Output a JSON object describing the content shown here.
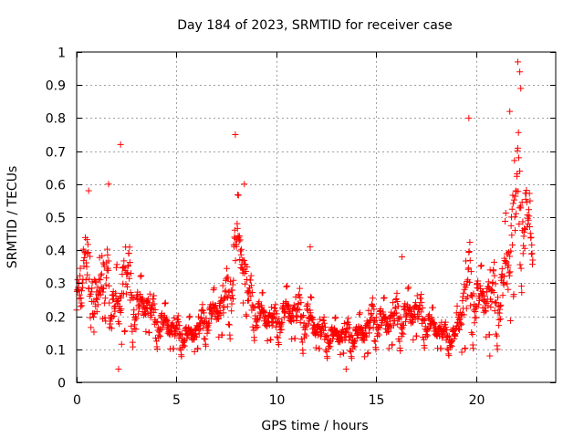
{
  "chart_data": {
    "type": "scatter",
    "title": "Day 184 of 2023, SRMTID for receiver case",
    "xlabel": "GPS time / hours",
    "ylabel": "SRMTID / TECUs",
    "xlim": [
      0,
      24
    ],
    "ylim": [
      0,
      1
    ],
    "x_ticks": [
      0,
      5,
      10,
      15,
      20
    ],
    "x_tick_labels": [
      "0",
      "5",
      "10",
      "15",
      "20"
    ],
    "y_ticks": [
      0,
      0.1,
      0.2,
      0.3,
      0.4,
      0.5,
      0.6,
      0.7,
      0.8,
      0.9,
      1
    ],
    "y_tick_labels": [
      "0",
      "0.1",
      "0.2",
      "0.3",
      "0.4",
      "0.5",
      "0.6",
      "0.7",
      "0.8",
      "0.9",
      "1"
    ],
    "grid": true,
    "marker": "+",
    "series_color": "#ff0000",
    "sampling": {
      "x_start": 0,
      "x_end": 22.85,
      "n_points": 1371
    },
    "envelope": {
      "x": [
        0,
        0.3,
        0.6,
        1.0,
        1.4,
        1.8,
        2.1,
        2.3,
        2.6,
        3.0,
        3.5,
        4.0,
        4.5,
        5.0,
        5.5,
        6.0,
        6.5,
        7.0,
        7.5,
        7.8,
        8.0,
        8.3,
        8.6,
        9.0,
        9.5,
        10.0,
        10.5,
        11.0,
        11.5,
        12.0,
        12.5,
        13.0,
        13.5,
        14.0,
        14.5,
        15.0,
        15.5,
        16.0,
        16.5,
        17.0,
        17.5,
        18.0,
        18.5,
        19.0,
        19.3,
        19.6,
        20.0,
        20.3,
        20.6,
        21.0,
        21.3,
        21.6,
        21.8,
        22.0,
        22.3,
        22.6,
        22.85
      ],
      "center": [
        0.22,
        0.24,
        0.33,
        0.3,
        0.27,
        0.2,
        0.18,
        0.28,
        0.27,
        0.2,
        0.22,
        0.17,
        0.16,
        0.14,
        0.13,
        0.14,
        0.18,
        0.2,
        0.22,
        0.3,
        0.38,
        0.36,
        0.24,
        0.2,
        0.18,
        0.17,
        0.2,
        0.19,
        0.18,
        0.15,
        0.13,
        0.13,
        0.13,
        0.13,
        0.14,
        0.18,
        0.16,
        0.18,
        0.18,
        0.2,
        0.17,
        0.15,
        0.13,
        0.13,
        0.2,
        0.24,
        0.24,
        0.22,
        0.24,
        0.22,
        0.25,
        0.3,
        0.42,
        0.48,
        0.5,
        0.46,
        0.36
      ],
      "spread": [
        0.08,
        0.1,
        0.12,
        0.1,
        0.14,
        0.1,
        0.14,
        0.16,
        0.12,
        0.1,
        0.07,
        0.06,
        0.06,
        0.05,
        0.05,
        0.05,
        0.06,
        0.07,
        0.09,
        0.14,
        0.16,
        0.12,
        0.08,
        0.07,
        0.06,
        0.05,
        0.07,
        0.07,
        0.09,
        0.05,
        0.05,
        0.05,
        0.05,
        0.05,
        0.07,
        0.07,
        0.07,
        0.07,
        0.08,
        0.07,
        0.06,
        0.05,
        0.04,
        0.05,
        0.12,
        0.16,
        0.1,
        0.1,
        0.11,
        0.11,
        0.12,
        0.2,
        0.22,
        0.22,
        0.2,
        0.14,
        0.06
      ]
    },
    "notable_values": [
      {
        "x": 2.2,
        "y": 0.72
      },
      {
        "x": 7.95,
        "y": 0.75
      },
      {
        "x": 19.65,
        "y": 0.8
      },
      {
        "x": 22.1,
        "y": 0.97
      },
      {
        "x": 22.2,
        "y": 0.94
      },
      {
        "x": 22.25,
        "y": 0.89
      },
      {
        "x": 21.7,
        "y": 0.82
      },
      {
        "x": 11.7,
        "y": 0.41
      },
      {
        "x": 16.3,
        "y": 0.38
      },
      {
        "x": 13.5,
        "y": 0.04
      },
      {
        "x": 2.1,
        "y": 0.04
      },
      {
        "x": 0.6,
        "y": 0.58
      },
      {
        "x": 1.6,
        "y": 0.6
      },
      {
        "x": 8.4,
        "y": 0.6
      },
      {
        "x": 20.7,
        "y": 0.08
      }
    ]
  }
}
